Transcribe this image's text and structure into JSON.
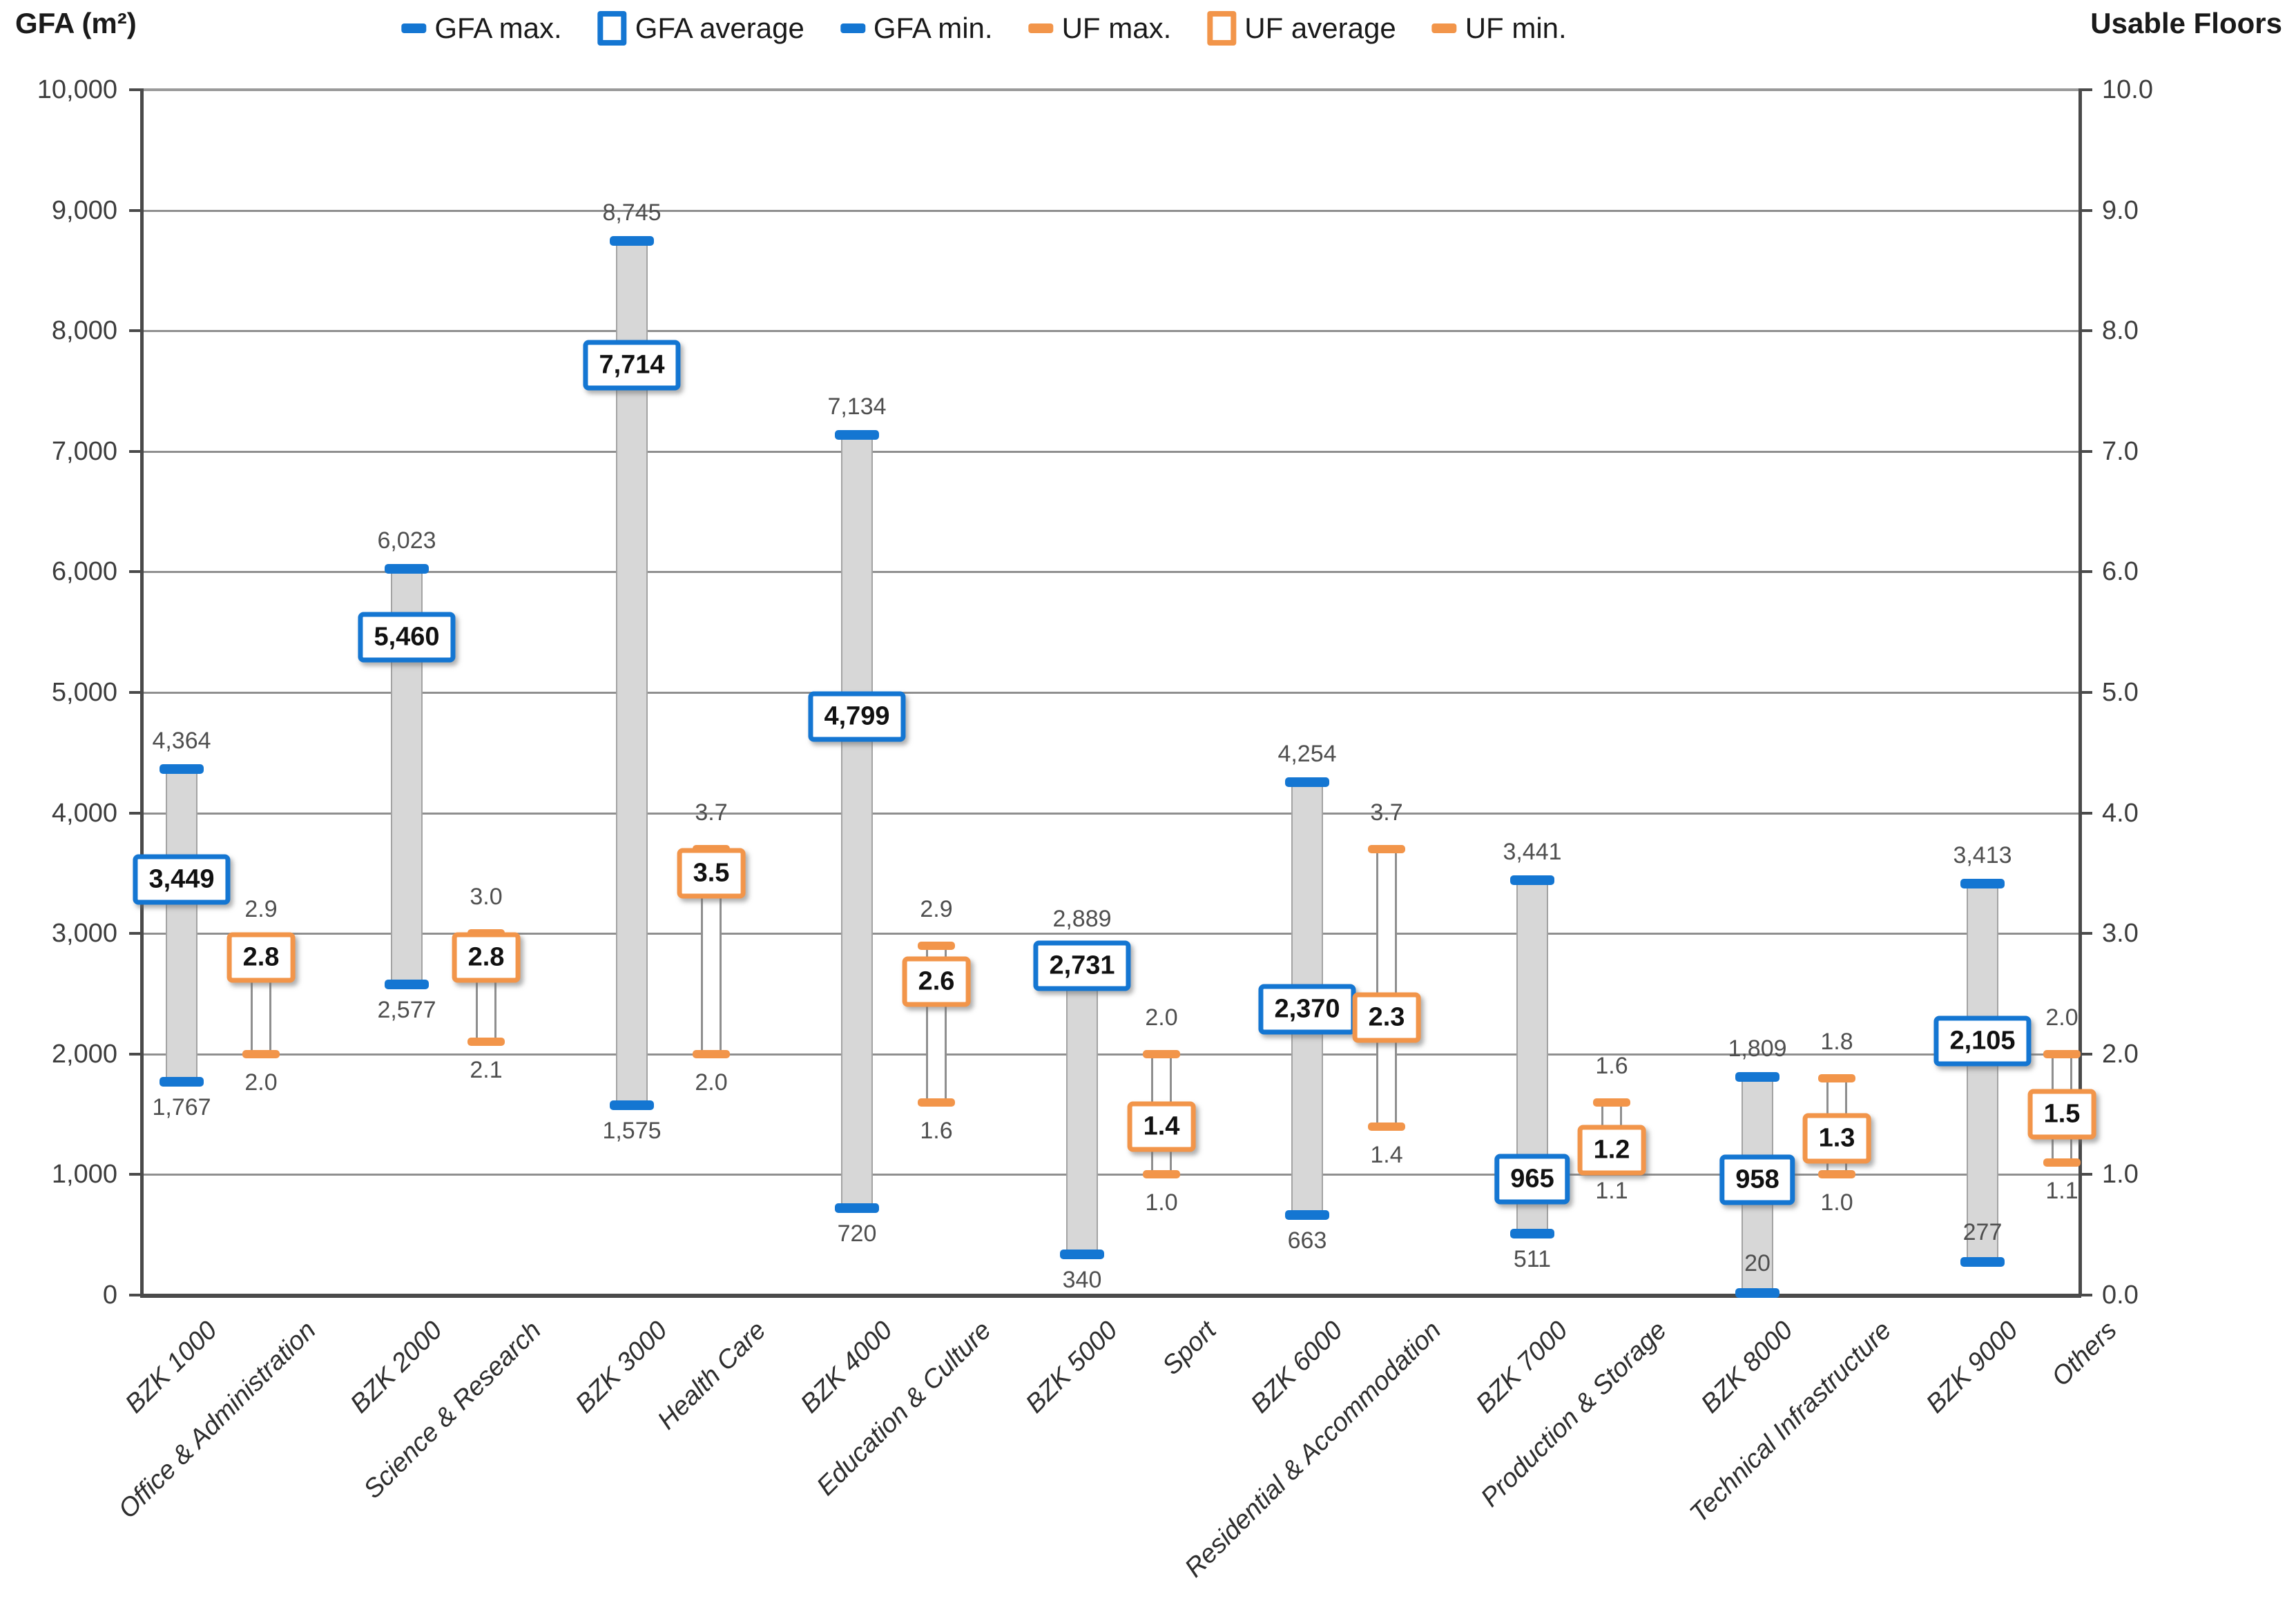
{
  "header": {
    "left_axis_title": "GFA (m²)",
    "right_axis_title": "Usable Floors"
  },
  "legend": {
    "items": [
      {
        "label": "GFA max.",
        "marker": "dash",
        "color": "#1476D2"
      },
      {
        "label": "GFA average",
        "marker": "square",
        "color": "#1476D2"
      },
      {
        "label": "GFA min.",
        "marker": "dash",
        "color": "#1476D2"
      },
      {
        "label": "UF max.",
        "marker": "dash",
        "color": "#F2954A"
      },
      {
        "label": "UF average",
        "marker": "square",
        "color": "#F2954A"
      },
      {
        "label": "UF min.",
        "marker": "dash",
        "color": "#F2954A"
      }
    ]
  },
  "chart_data": {
    "type": "range-bar",
    "title": "GFA and Usable Floors ranges (min / average / max) per building category",
    "grid": true,
    "legend_position": "top",
    "series_colors": {
      "gfa": "#1476D2",
      "uf": "#F2954A",
      "gfa_bar_fill": "#D7D7D7",
      "uf_bar_fill": "#FFFFFF"
    },
    "left_axis": {
      "title": "GFA (m²)",
      "min": 0,
      "max": 10000,
      "step": 1000,
      "tick_labels": [
        "10,000",
        "9,000",
        "8,000",
        "7,000",
        "6,000",
        "5,000",
        "4,000",
        "3,000",
        "2,000",
        "1,000",
        "0"
      ]
    },
    "right_axis": {
      "title": "Usable Floors",
      "min": 0,
      "max": 10,
      "step": 1,
      "tick_labels": [
        "10.0",
        "9.0",
        "8.0",
        "7.0",
        "6.0",
        "5.0",
        "4.0",
        "3.0",
        "2.0",
        "1.0",
        "0.0"
      ]
    },
    "categories": [
      {
        "code": "BZK 1000",
        "name": "Office & Administration",
        "gfa_max": 4364,
        "gfa_avg": 3449,
        "gfa_min": 1767,
        "uf_max": 2.9,
        "uf_avg": 2.8,
        "uf_min": 2.0,
        "labels": {
          "gfa_max": "4,364",
          "gfa_avg": "3,449",
          "gfa_min": "1,767",
          "uf_max": "2.9",
          "uf_avg": "2.8",
          "uf_min": "2.0"
        }
      },
      {
        "code": "BZK 2000",
        "name": "Science & Research",
        "gfa_max": 6023,
        "gfa_avg": 5460,
        "gfa_min": 2577,
        "uf_max": 3.0,
        "uf_avg": 2.8,
        "uf_min": 2.1,
        "labels": {
          "gfa_max": "6,023",
          "gfa_avg": "5,460",
          "gfa_min": "2,577",
          "uf_max": "3.0",
          "uf_avg": "2.8",
          "uf_min": "2.1"
        }
      },
      {
        "code": "BZK 3000",
        "name": "Health Care",
        "gfa_max": 8745,
        "gfa_avg": 7714,
        "gfa_min": 1575,
        "uf_max": 3.7,
        "uf_avg": 3.5,
        "uf_min": 2.0,
        "labels": {
          "gfa_max": "8,745",
          "gfa_avg": "7,714",
          "gfa_min": "1,575",
          "uf_max": "3.7",
          "uf_avg": "3.5",
          "uf_min": "2.0"
        }
      },
      {
        "code": "BZK 4000",
        "name": "Education & Culture",
        "gfa_max": 7134,
        "gfa_avg": 4799,
        "gfa_min": 720,
        "uf_max": 2.9,
        "uf_avg": 2.6,
        "uf_min": 1.6,
        "labels": {
          "gfa_max": "7,134",
          "gfa_avg": "4,799",
          "gfa_min": "720",
          "uf_max": "2.9",
          "uf_avg": "2.6",
          "uf_min": "1.6"
        }
      },
      {
        "code": "BZK 5000",
        "name": "Sport",
        "gfa_max": 2889,
        "gfa_avg": 2731,
        "gfa_min": 340,
        "uf_max": 2.0,
        "uf_avg": 1.4,
        "uf_min": 1.0,
        "labels": {
          "gfa_max": "2,889",
          "gfa_avg": "2,731",
          "gfa_min": "340",
          "uf_max": "2.0",
          "uf_avg": "1.4",
          "uf_min": "1.0"
        }
      },
      {
        "code": "BZK 6000",
        "name": "Residential & Accommodation",
        "gfa_max": 4254,
        "gfa_avg": 2370,
        "gfa_min": 663,
        "uf_max": 3.7,
        "uf_avg": 2.3,
        "uf_min": 1.4,
        "labels": {
          "gfa_max": "4,254",
          "gfa_avg": "2,370",
          "gfa_min": "663",
          "uf_max": "3.7",
          "uf_avg": "2.3",
          "uf_min": "1.4"
        }
      },
      {
        "code": "BZK 7000",
        "name": "Production & Storage",
        "gfa_max": 3441,
        "gfa_avg": 965,
        "gfa_min": 511,
        "uf_max": 1.6,
        "uf_avg": 1.2,
        "uf_min": 1.1,
        "labels": {
          "gfa_max": "3,441",
          "gfa_avg": "965",
          "gfa_min": "511",
          "uf_max": "1.6",
          "uf_avg": "1.2",
          "uf_min": "1.1"
        }
      },
      {
        "code": "BZK 8000",
        "name": "Technical Infrastructure",
        "gfa_max": 1809,
        "gfa_avg": 958,
        "gfa_min": 20,
        "uf_max": 1.8,
        "uf_avg": 1.3,
        "uf_min": 1.0,
        "labels": {
          "gfa_max": "1,809",
          "gfa_avg": "958",
          "gfa_min": "20",
          "uf_max": "1.8",
          "uf_avg": "1.3",
          "uf_min": "1.0"
        }
      },
      {
        "code": "BZK 9000",
        "name": "Others",
        "gfa_max": 3413,
        "gfa_avg": 2105,
        "gfa_min": 277,
        "uf_max": 2.0,
        "uf_avg": 1.5,
        "uf_min": 1.1,
        "labels": {
          "gfa_max": "3,413",
          "gfa_avg": "2,105",
          "gfa_min": "277",
          "uf_max": "2.0",
          "uf_avg": "1.5",
          "uf_min": "1.1"
        }
      }
    ]
  }
}
